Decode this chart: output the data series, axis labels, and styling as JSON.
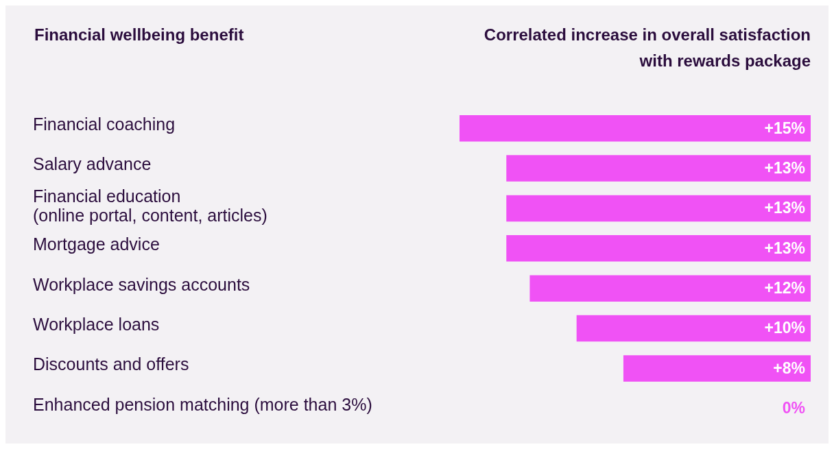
{
  "chart_data": {
    "type": "bar",
    "orientation": "horizontal",
    "ylabel": "Financial wellbeing benefit",
    "xlabel": "Correlated increase in overall satisfaction\nwith rewards package",
    "categories": [
      "Financial coaching",
      "Salary advance",
      "Financial education\n(online portal, content, articles)",
      "Mortgage advice",
      "Workplace savings accounts",
      "Workplace loans",
      "Discounts and offers",
      "Enhanced pension matching (more than 3%)"
    ],
    "values": [
      15,
      13,
      13,
      13,
      12,
      10,
      8,
      0
    ],
    "value_labels": [
      "+15%",
      "+13%",
      "+13%",
      "+13%",
      "+12%",
      "+10%",
      "+8%",
      "0%"
    ],
    "color": "#f052f5",
    "xlim": [
      15,
      0
    ],
    "tick_labels": false,
    "legend": false
  }
}
